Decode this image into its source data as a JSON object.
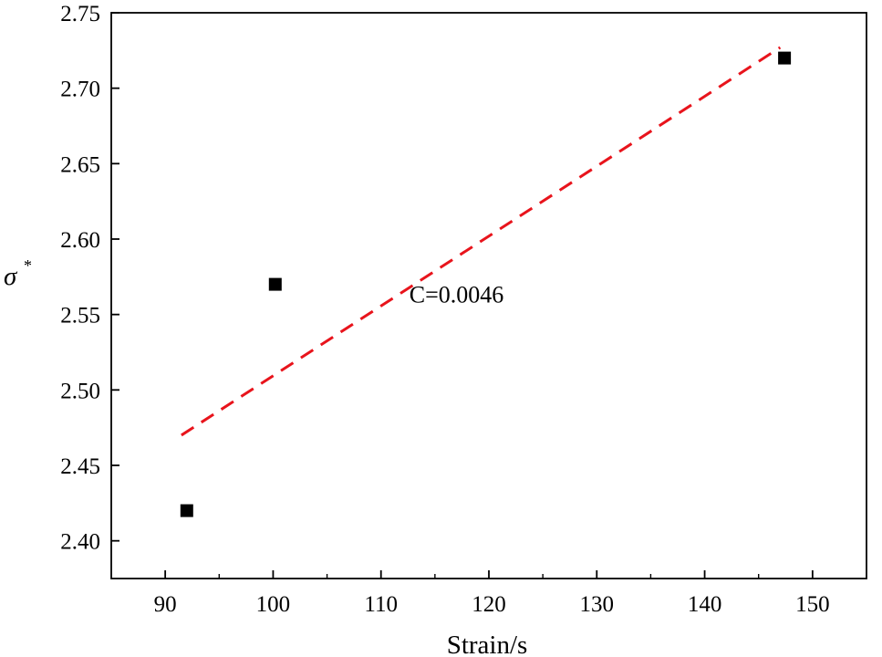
{
  "chart_data": {
    "type": "scatter",
    "xlabel": "Strain/s",
    "ylabel_symbol": "σ",
    "ylabel_superscript": "*",
    "xlim": [
      85,
      155
    ],
    "ylim": [
      2.375,
      2.75
    ],
    "x_ticks": [
      "90",
      "100",
      "110",
      "120",
      "130",
      "140",
      "150"
    ],
    "y_ticks": [
      "2.40",
      "2.45",
      "2.50",
      "2.55",
      "2.60",
      "2.65",
      "2.70",
      "2.75"
    ],
    "grid": false,
    "series": [
      {
        "marker": "square",
        "color": "#000000",
        "points": [
          {
            "x": 92,
            "y": 2.42
          },
          {
            "x": 100.2,
            "y": 2.57
          },
          {
            "x": 147.4,
            "y": 2.72
          }
        ]
      }
    ],
    "fit_line": {
      "style": "dashed",
      "color": "#e8141c",
      "x": [
        91.5,
        147.0
      ],
      "y": [
        2.47,
        2.727
      ]
    },
    "annotations": [
      {
        "text": "C=0.0046",
        "x": 117,
        "y": 2.558
      }
    ]
  }
}
